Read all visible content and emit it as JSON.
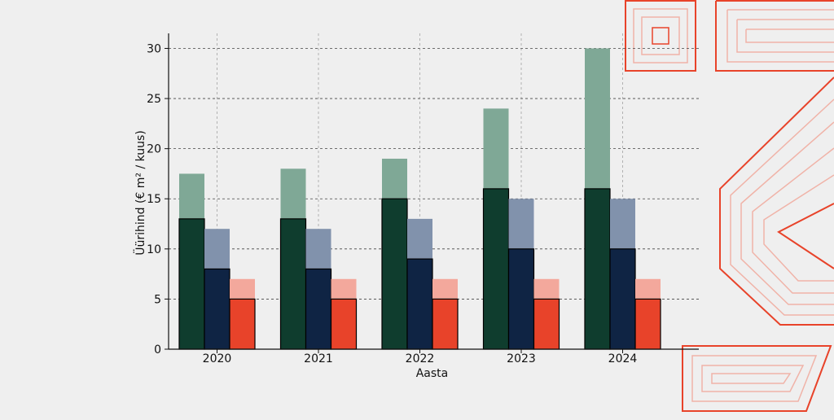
{
  "colors": {
    "background": "#efefef",
    "accent": "#e8432a"
  },
  "chart_data": {
    "type": "bar",
    "xlabel": "Aasta",
    "ylabel": "Üürihind (€ m² / kuus)",
    "ylim": [
      0,
      31.5
    ],
    "yticks": [
      0,
      5,
      10,
      15,
      20,
      25,
      30
    ],
    "grid": true,
    "categories": [
      "2020",
      "2021",
      "2022",
      "2023",
      "2024"
    ],
    "series": [
      {
        "high": [
          17.5,
          18,
          19,
          24,
          30
        ],
        "low": [
          13,
          13,
          15,
          16,
          16
        ],
        "color_high": "#7fa896",
        "color_low": "#0f3d2e"
      },
      {
        "high": [
          12,
          12,
          13,
          15,
          15
        ],
        "low": [
          8,
          8,
          9,
          10,
          10
        ],
        "color_high": "#8192ac",
        "color_low": "#0f2444"
      },
      {
        "high": [
          7,
          7,
          7,
          7,
          7
        ],
        "low": [
          5,
          5,
          5,
          5,
          5
        ],
        "color_high": "#f3a89c",
        "color_low": "#e8432a"
      }
    ]
  }
}
